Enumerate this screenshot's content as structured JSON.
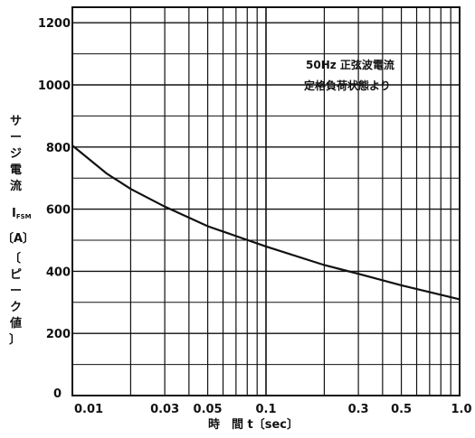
{
  "chart_data": {
    "type": "line",
    "x_scale": "log",
    "xlim": [
      0.01,
      1.0
    ],
    "ylim": [
      0,
      1250
    ],
    "grid": true,
    "xlabel": "時　間 t〔sec〕",
    "ylabel_lines": [
      "サ",
      "ー",
      "ジ",
      "電",
      "流"
    ],
    "ylabel_symbol": "I",
    "ylabel_symbol_sub": "FSM",
    "ylabel_unit": "〔A〕",
    "ylabel_note_lines": [
      "〔",
      "ピ",
      "ー",
      "ク",
      "値",
      "〕"
    ],
    "annotation_lines": [
      "50Hz 正弦波電流",
      "定格負荷状態より"
    ],
    "x_ticks": [
      {
        "value": 0.01,
        "label": "0.01"
      },
      {
        "value": 0.03,
        "label": "0.03"
      },
      {
        "value": 0.05,
        "label": "0.05"
      },
      {
        "value": 0.1,
        "label": "0.1"
      },
      {
        "value": 0.3,
        "label": "0.3"
      },
      {
        "value": 0.5,
        "label": "0.5"
      },
      {
        "value": 1.0,
        "label": "1.0"
      }
    ],
    "y_ticks": [
      {
        "value": 0,
        "label": "0"
      },
      {
        "value": 200,
        "label": "200"
      },
      {
        "value": 400,
        "label": "400"
      },
      {
        "value": 600,
        "label": "600"
      },
      {
        "value": 800,
        "label": "800"
      },
      {
        "value": 1000,
        "label": "1000"
      },
      {
        "value": 1200,
        "label": "1200"
      }
    ],
    "series": [
      {
        "points": [
          {
            "x": 0.01,
            "y": 805
          },
          {
            "x": 0.015,
            "y": 715
          },
          {
            "x": 0.02,
            "y": 665
          },
          {
            "x": 0.03,
            "y": 608
          },
          {
            "x": 0.05,
            "y": 545
          },
          {
            "x": 0.1,
            "y": 480
          },
          {
            "x": 0.2,
            "y": 420
          },
          {
            "x": 0.3,
            "y": 392
          },
          {
            "x": 0.5,
            "y": 355
          },
          {
            "x": 1.0,
            "y": 310
          }
        ]
      }
    ]
  }
}
